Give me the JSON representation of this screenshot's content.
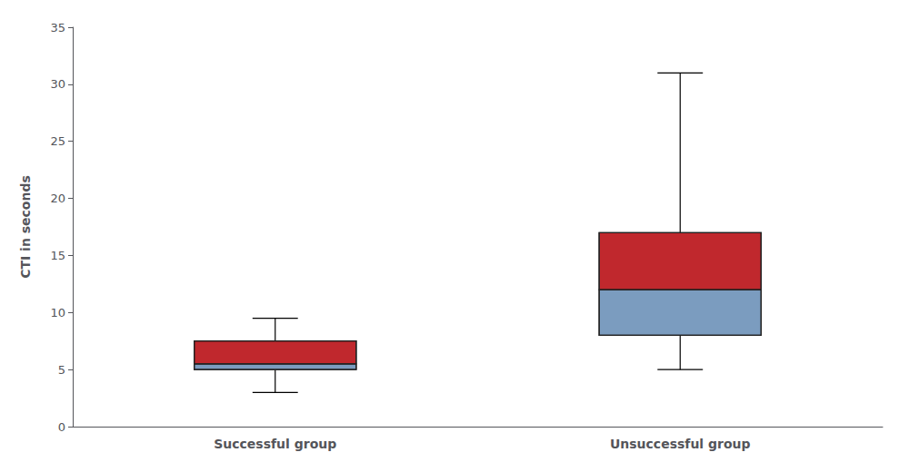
{
  "chart_data": {
    "type": "box",
    "categories": [
      "Successful group",
      "Unsuccessful group"
    ],
    "whisker_low": [
      3.0,
      5.0
    ],
    "q1": [
      5.0,
      8.0
    ],
    "median": [
      5.5,
      12.0
    ],
    "q3": [
      7.5,
      17.0
    ],
    "whisker_high": [
      9.5,
      31.0
    ],
    "colors": [
      "#7b9cbf",
      "#c0282d"
    ],
    "ylabel": "CTI in seconds",
    "ylim": [
      0,
      35
    ],
    "yticks": [
      0,
      5,
      10,
      15,
      20,
      25,
      30,
      35
    ],
    "grid": false
  }
}
